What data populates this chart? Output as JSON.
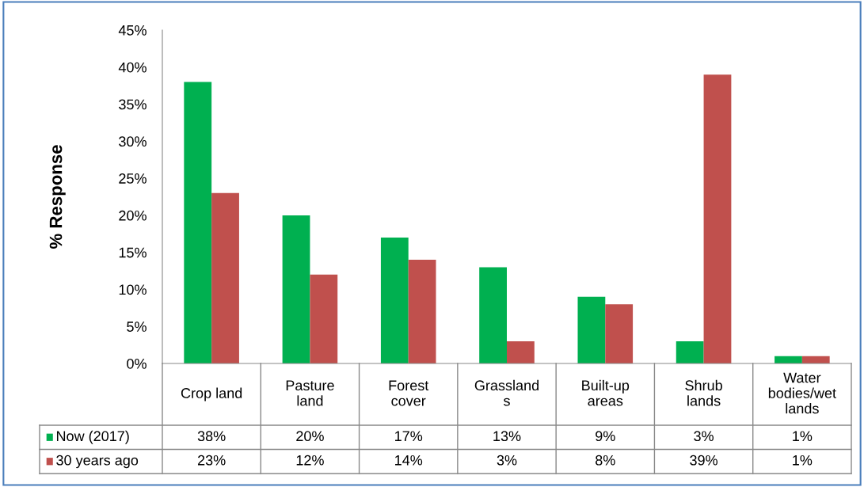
{
  "chart_data": {
    "type": "bar",
    "ylabel": "% Response",
    "categories": [
      "Crop land",
      "Pasture\nland",
      "Forest\ncover",
      "Grassland\ns",
      "Built-up\nareas",
      "Shrub\nlands",
      "Water\nbodies/wet\nlands"
    ],
    "series": [
      {
        "name": "Now (2017)",
        "color": "#00b050",
        "values": [
          38,
          20,
          17,
          13,
          9,
          3,
          1
        ],
        "value_labels": [
          "38%",
          "20%",
          "17%",
          "13%",
          "9%",
          "3%",
          "1%"
        ]
      },
      {
        "name": "30 years ago",
        "color": "#c0504d",
        "values": [
          23,
          12,
          14,
          3,
          8,
          39,
          1
        ],
        "value_labels": [
          "23%",
          "12%",
          "14%",
          "3%",
          "8%",
          "39%",
          "1%"
        ]
      }
    ],
    "ylim": [
      0,
      45
    ],
    "yticks": [
      {
        "value": 0,
        "label": "0%"
      },
      {
        "value": 5,
        "label": "5%"
      },
      {
        "value": 10,
        "label": "10%"
      },
      {
        "value": 15,
        "label": "15%"
      },
      {
        "value": 20,
        "label": "20%"
      },
      {
        "value": 25,
        "label": "25%"
      },
      {
        "value": 30,
        "label": "30%"
      },
      {
        "value": 35,
        "label": "35%"
      },
      {
        "value": 40,
        "label": "40%"
      },
      {
        "value": 45,
        "label": "45%"
      }
    ],
    "grid": false,
    "legend": "bottom"
  }
}
